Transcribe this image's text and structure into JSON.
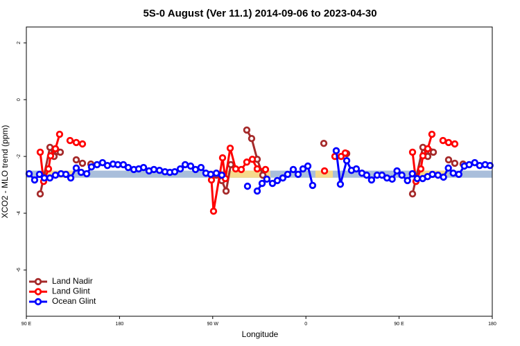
{
  "chart_data": {
    "type": "line",
    "title": "5S-0 August (Ver 11.1)   2014-09-06 to 2023-04-30",
    "xlabel": "Longitude",
    "ylabel": "XCO2 - MLO trend (ppm)",
    "xlim": [
      90,
      540
    ],
    "ylim": [
      -7.63,
      2.56
    ],
    "xticks": [
      {
        "value": 90,
        "label": "90 E"
      },
      180,
      {
        "value": 270,
        "label": "90 W"
      },
      {
        "value": 360,
        "label": "0"
      },
      {
        "value": 450,
        "label": "90 E"
      },
      180
    ],
    "yticks": [
      -6,
      -4,
      -2,
      0,
      2
    ],
    "grid": false,
    "legend": "bottom-left",
    "bands": [
      {
        "ylim": [
          -2.5,
          -2.75
        ],
        "color": "#a9bedb"
      },
      {
        "xlim": [
          104.7,
          134.9
        ],
        "ylim": [
          -2.5,
          -2.75
        ],
        "color": "#f5d98c"
      },
      {
        "xlim": [
          265.4,
          325.7
        ],
        "ylim": [
          -2.5,
          -2.75
        ],
        "color": "#f5d98c"
      },
      {
        "xlim": [
          369.2,
          386.0
        ],
        "ylim": [
          -2.5,
          -2.75
        ],
        "color": "#f5d98c"
      },
      {
        "xlim": [
          463.0,
          496.5
        ],
        "ylim": [
          -2.5,
          -2.75
        ],
        "color": "#f5d98c"
      }
    ],
    "series": [
      {
        "name": "Land Nadir",
        "color": "#a52a2a",
        "x": [
          103.4,
          112.8,
          116.8,
          120.1,
          122.8,
          null,
          138.2,
          144.2,
          null,
          152.3,
          null,
          273.5,
          278.8,
          282.9,
          287.5,
          null,
          302.9,
          307.6,
          313.0,
          318.4,
          null,
          377.3,
          null,
          399.4,
          null,
          463.0,
          473.0,
          477.7,
          480.4,
          483.1,
          null,
          497.8,
          503.8,
          null,
          511.8
        ],
        "values": [
          -3.32,
          -1.68,
          -2.0,
          -1.83,
          -1.85,
          null,
          -2.12,
          -2.24,
          null,
          -2.27,
          null,
          -2.66,
          -2.85,
          -3.22,
          -2.29,
          null,
          -1.07,
          -1.37,
          -2.1,
          -2.66,
          null,
          -1.54,
          null,
          -1.9,
          null,
          -3.32,
          -1.68,
          -2.0,
          -1.83,
          -1.85,
          null,
          -2.12,
          -2.24,
          null,
          -2.27
        ]
      },
      {
        "name": "Land Glint",
        "color": "#ff0000",
        "x": [
          103.4,
          106.7,
          111.4,
          113.4,
          118.1,
          122.1,
          null,
          132.2,
          null,
          138.2,
          null,
          144.2,
          null,
          268.8,
          270.8,
          279.5,
          282.2,
          286.9,
          292.2,
          297.6,
          302.9,
          308.3,
          313.0,
          321.0,
          null,
          378.0,
          null,
          388.0,
          394.0,
          398.0,
          null,
          463.0,
          466.3,
          471.0,
          473.0,
          477.7,
          481.7,
          null,
          492.4,
          null,
          497.8,
          null,
          503.8
        ],
        "values": [
          -1.85,
          -2.88,
          -2.44,
          -1.98,
          -1.73,
          -1.22,
          null,
          -1.44,
          null,
          -1.51,
          null,
          -1.56,
          null,
          -2.83,
          -3.93,
          -2.05,
          -2.78,
          -1.71,
          -2.44,
          -2.46,
          -2.2,
          -2.1,
          -2.44,
          -2.46,
          null,
          -2.51,
          null,
          -2.0,
          -2.0,
          -1.88,
          null,
          -1.85,
          -2.88,
          -2.44,
          -1.98,
          -1.73,
          -1.22,
          null,
          -1.44,
          null,
          -1.51,
          null,
          -1.56
        ]
      },
      {
        "name": "Ocean Glint",
        "color": "#0000ff",
        "x": [
          92.7,
          98.0,
          102.7,
          107.4,
          112.7,
          118.1,
          123.5,
          128.2,
          132.9,
          138.2,
          142.9,
          148.3,
          152.9,
          158.3,
          163.6,
          168.3,
          173.7,
          178.4,
          183.7,
          188.4,
          193.8,
          198.5,
          203.2,
          208.5,
          213.2,
          218.6,
          223.9,
          228.6,
          233.3,
          238.7,
          243.4,
          248.7,
          253.4,
          258.7,
          263.4,
          268.1,
          273.5,
          278.8,
          null,
          303.6,
          null,
          313.0,
          317.7,
          322.3,
          327.7,
          332.4,
          337.7,
          342.4,
          347.8,
          352.5,
          357.2,
          361.9,
          366.5,
          null,
          389.3,
          393.3,
          399.4,
          404.0,
          408.7,
          414.1,
          418.7,
          423.4,
          428.8,
          433.5,
          438.3,
          443.3,
          448.0,
          452.7,
          458.1,
          462.8,
          467.5,
          472.8,
          477.5,
          482.2,
          487.6,
          492.9,
          497.6,
          502.3,
          507.7,
          513.0,
          517.7,
          523.1,
          527.8,
          533.1,
          537.8
        ],
        "values": [
          -2.61,
          -2.83,
          -2.63,
          -2.76,
          -2.76,
          -2.66,
          -2.61,
          -2.63,
          -2.76,
          -2.41,
          -2.56,
          -2.61,
          -2.37,
          -2.29,
          -2.22,
          -2.32,
          -2.27,
          -2.29,
          -2.29,
          -2.39,
          -2.46,
          -2.44,
          -2.39,
          -2.51,
          -2.46,
          -2.49,
          -2.54,
          -2.56,
          -2.54,
          -2.44,
          -2.29,
          -2.34,
          -2.46,
          -2.39,
          -2.59,
          -2.63,
          -2.59,
          -2.66,
          null,
          -3.05,
          null,
          -3.22,
          -2.95,
          -2.8,
          -2.95,
          -2.85,
          -2.76,
          -2.63,
          -2.46,
          -2.63,
          -2.44,
          -2.34,
          -3.02,
          null,
          -1.8,
          -2.98,
          -2.15,
          -2.49,
          -2.44,
          -2.59,
          -2.66,
          -2.83,
          -2.66,
          -2.66,
          -2.76,
          -2.8,
          -2.51,
          -2.66,
          -2.85,
          -2.61,
          -2.78,
          -2.78,
          -2.71,
          -2.63,
          -2.66,
          -2.73,
          -2.41,
          -2.59,
          -2.63,
          -2.34,
          -2.29,
          -2.22,
          -2.32,
          -2.29,
          -2.32
        ]
      }
    ]
  }
}
